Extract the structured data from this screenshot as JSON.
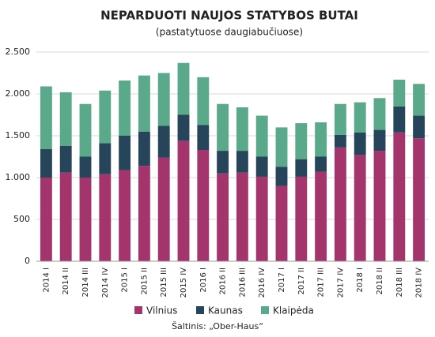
{
  "chart_data": {
    "type": "stacked_bar",
    "title": "NEPARDUOTI NAUJOS STATYBOS BUTAI",
    "subtitle": "(pastatytuose daugiabučiuose)",
    "source": "Šaltinis: „Ober-Haus“",
    "categories": [
      "2014 I",
      "2014 II",
      "2014 III",
      "2014 IV",
      "2015 I",
      "2015 II",
      "2015 III",
      "2015 IV",
      "2016 I",
      "2016 II",
      "2016 III",
      "2016 IV",
      "2017 I",
      "2017 II",
      "2017 III",
      "2017 IV",
      "2018 I",
      "2018 II",
      "2018 III",
      "2018 IV"
    ],
    "series": [
      {
        "name": "Vilnius",
        "color": "#a3346c",
        "values": [
          1000,
          1060,
          1000,
          1040,
          1090,
          1140,
          1240,
          1440,
          1330,
          1050,
          1060,
          1010,
          900,
          1010,
          1070,
          1360,
          1270,
          1320,
          1540,
          1470
        ]
      },
      {
        "name": "Kaunas",
        "color": "#26445a",
        "values": [
          340,
          320,
          250,
          370,
          410,
          410,
          380,
          310,
          300,
          270,
          260,
          240,
          230,
          210,
          180,
          150,
          270,
          250,
          310,
          270
        ]
      },
      {
        "name": "Klaipėda",
        "color": "#5aa98a",
        "values": [
          750,
          640,
          630,
          630,
          660,
          670,
          630,
          620,
          570,
          560,
          520,
          490,
          470,
          430,
          410,
          370,
          360,
          380,
          320,
          380
        ]
      }
    ],
    "ylim": [
      0,
      2500
    ],
    "yticks": [
      0,
      500,
      {
        "value": 1000,
        "label": "1.000"
      },
      {
        "value": 1500,
        "label": "1.500"
      },
      {
        "value": 2000,
        "label": "2.000"
      },
      {
        "value": 2500,
        "label": "2.500"
      }
    ],
    "grid": true
  }
}
